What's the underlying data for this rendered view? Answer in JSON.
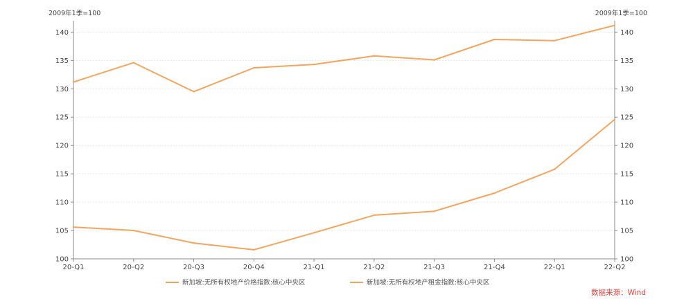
{
  "chart_data": {
    "type": "line",
    "categories": [
      "20-Q1",
      "20-Q2",
      "20-Q3",
      "20-Q4",
      "21-Q1",
      "21-Q2",
      "21-Q3",
      "21-Q4",
      "22-Q1",
      "22-Q2"
    ],
    "series": [
      {
        "name": "新加坡:无所有权地产价格指数:核心中央区",
        "color": "#f6a45a",
        "axis": "left",
        "values": [
          131.2,
          134.6,
          129.5,
          133.7,
          134.3,
          135.8,
          135.1,
          138.7,
          138.5,
          141.2
        ]
      },
      {
        "name": "新加坡:无所有权地产租金指数:核心中央区",
        "color": "#f6a45a",
        "axis": "right",
        "values": [
          105.6,
          105.0,
          102.8,
          101.6,
          104.6,
          107.7,
          108.4,
          111.6,
          115.8,
          124.6
        ]
      }
    ],
    "y_left": {
      "label": "2009年1季=100",
      "range": [
        100,
        142
      ],
      "ticks": [
        100,
        105,
        110,
        115,
        120,
        125,
        130,
        135,
        140
      ]
    },
    "y_right": {
      "label": "2009年1季=100",
      "range": [
        100,
        142
      ],
      "ticks": [
        100,
        105,
        110,
        115,
        120,
        125,
        130,
        135,
        140
      ]
    },
    "grid": true,
    "legend_position": "bottom",
    "source": "数据来源：Wind"
  }
}
